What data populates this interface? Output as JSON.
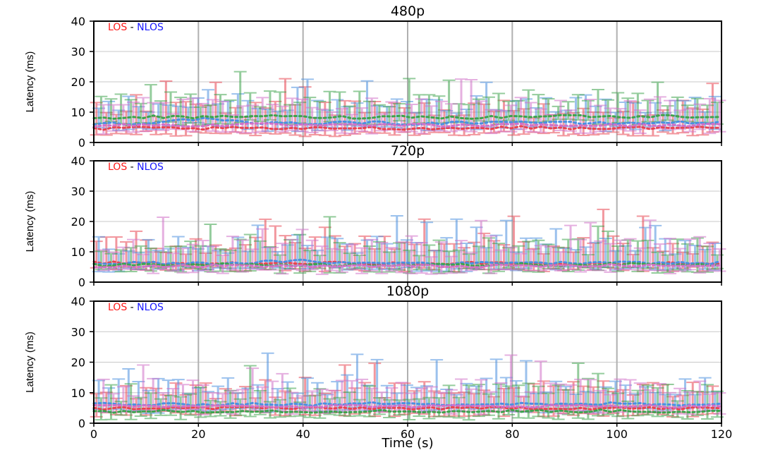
{
  "chart_data": [
    {
      "type": "line",
      "title": "480p",
      "ylabel": "Latency (ms)",
      "xlabel": "",
      "xlim": [
        0,
        120
      ],
      "ylim": [
        0,
        40
      ],
      "xticks": [],
      "yticks": [
        "0",
        "10",
        "20",
        "30",
        "40"
      ],
      "grid": true,
      "legend": [
        {
          "label": "LOS",
          "color": "#ff1a1a"
        },
        {
          "label": "-",
          "color": "#000000"
        },
        {
          "label": "NLOS",
          "color": "#1a1aff"
        }
      ],
      "reference_line": 40,
      "series": [
        {
          "color": "#e8434f",
          "x": [
            0,
            10,
            20,
            30,
            40,
            50,
            60,
            70,
            80,
            90,
            100,
            110,
            120
          ],
          "values": [
            4.5,
            4.8,
            4.6,
            4.7,
            4.5,
            4.9,
            4.6,
            4.7,
            5.0,
            4.8,
            4.7,
            4.9,
            4.8
          ]
        },
        {
          "color": "#4a90e0",
          "x": [
            0,
            10,
            20,
            30,
            40,
            50,
            60,
            70,
            80,
            90,
            100,
            110,
            120
          ],
          "values": [
            6.2,
            6.5,
            7.8,
            6.4,
            6.3,
            6.7,
            6.2,
            6.5,
            6.9,
            6.4,
            6.3,
            6.6,
            6.5
          ]
        },
        {
          "color": "#3da34d",
          "x": [
            0,
            10,
            20,
            30,
            40,
            50,
            60,
            70,
            80,
            90,
            100,
            110,
            120
          ],
          "values": [
            8.0,
            8.5,
            8.2,
            8.8,
            8.4,
            8.3,
            8.6,
            8.2,
            8.5,
            8.9,
            8.4,
            8.7,
            8.5
          ]
        },
        {
          "color": "#d070c8",
          "x": [
            0,
            10,
            20,
            30,
            40,
            50,
            60,
            70,
            80,
            90,
            100,
            110,
            120
          ],
          "values": [
            5.5,
            5.8,
            5.6,
            5.9,
            5.7,
            5.6,
            5.8,
            5.5,
            5.9,
            5.7,
            5.6,
            5.8,
            5.7
          ]
        }
      ]
    },
    {
      "type": "line",
      "title": "720p",
      "ylabel": "Latency (ms)",
      "xlabel": "",
      "xlim": [
        0,
        120
      ],
      "ylim": [
        0,
        40
      ],
      "xticks": [],
      "yticks": [
        "0",
        "10",
        "20",
        "30",
        "40"
      ],
      "grid": true,
      "legend": [
        {
          "label": "LOS",
          "color": "#ff1a1a"
        },
        {
          "label": "-",
          "color": "#000000"
        },
        {
          "label": "NLOS",
          "color": "#1a1aff"
        }
      ],
      "reference_line": 40,
      "series": [
        {
          "color": "#e8434f",
          "x": [
            0,
            10,
            20,
            30,
            40,
            50,
            60,
            70,
            80,
            90,
            100,
            110,
            120
          ],
          "values": [
            6.5,
            6.2,
            6.0,
            6.3,
            6.1,
            6.4,
            6.0,
            6.2,
            6.3,
            6.1,
            6.0,
            6.2,
            6.1
          ]
        },
        {
          "color": "#4a90e0",
          "x": [
            0,
            10,
            20,
            30,
            40,
            50,
            60,
            70,
            80,
            90,
            100,
            110,
            120
          ],
          "values": [
            6.0,
            6.3,
            6.1,
            6.5,
            7.0,
            6.2,
            6.4,
            6.1,
            6.6,
            6.3,
            6.8,
            6.2,
            6.4
          ]
        },
        {
          "color": "#3da34d",
          "x": [
            0,
            10,
            20,
            30,
            40,
            50,
            60,
            70,
            80,
            90,
            100,
            110,
            120
          ],
          "values": [
            5.6,
            5.8,
            5.7,
            5.9,
            5.6,
            5.8,
            5.7,
            5.6,
            5.8,
            5.7,
            5.9,
            5.8,
            5.7
          ]
        },
        {
          "color": "#d070c8",
          "x": [
            0,
            10,
            20,
            30,
            40,
            50,
            60,
            70,
            80,
            90,
            100,
            110,
            120
          ],
          "values": [
            5.2,
            5.4,
            5.3,
            5.5,
            5.2,
            5.4,
            5.3,
            5.2,
            5.4,
            5.3,
            5.5,
            5.4,
            5.3
          ]
        }
      ]
    },
    {
      "type": "line",
      "title": "1080p",
      "ylabel": "Latency (ms)",
      "xlabel": "Time (s)",
      "xlim": [
        0,
        120
      ],
      "ylim": [
        0,
        40
      ],
      "xticks": [
        "0",
        "20",
        "40",
        "60",
        "80",
        "100",
        "120"
      ],
      "yticks": [
        "0",
        "10",
        "20",
        "30",
        "40"
      ],
      "grid": true,
      "legend": [
        {
          "label": "LOS",
          "color": "#ff1a1a"
        },
        {
          "label": "-",
          "color": "#000000"
        },
        {
          "label": "NLOS",
          "color": "#1a1aff"
        }
      ],
      "reference_line": 40,
      "series": [
        {
          "color": "#e8434f",
          "x": [
            0,
            10,
            20,
            30,
            40,
            50,
            60,
            70,
            80,
            90,
            100,
            110,
            120
          ],
          "values": [
            4.8,
            5.0,
            4.9,
            5.2,
            4.8,
            5.0,
            4.9,
            4.8,
            5.1,
            4.9,
            5.0,
            4.8,
            4.9
          ]
        },
        {
          "color": "#4a90e0",
          "x": [
            0,
            10,
            20,
            30,
            40,
            50,
            60,
            70,
            80,
            90,
            100,
            110,
            120
          ],
          "values": [
            6.5,
            6.0,
            6.2,
            6.4,
            6.0,
            6.3,
            6.8,
            6.1,
            6.4,
            6.0,
            6.5,
            6.2,
            6.3
          ]
        },
        {
          "color": "#3da34d",
          "x": [
            0,
            10,
            20,
            30,
            40,
            50,
            60,
            70,
            80,
            90,
            100,
            110,
            120
          ],
          "values": [
            3.8,
            4.0,
            3.9,
            4.1,
            3.8,
            4.0,
            3.9,
            3.8,
            4.0,
            3.9,
            4.1,
            3.8,
            3.9
          ]
        },
        {
          "color": "#d070c8",
          "x": [
            0,
            10,
            20,
            30,
            40,
            50,
            60,
            70,
            80,
            90,
            100,
            110,
            120
          ],
          "values": [
            5.5,
            5.7,
            5.6,
            5.8,
            5.5,
            5.7,
            5.6,
            5.5,
            5.7,
            5.6,
            5.8,
            5.5,
            5.6
          ]
        }
      ]
    }
  ]
}
